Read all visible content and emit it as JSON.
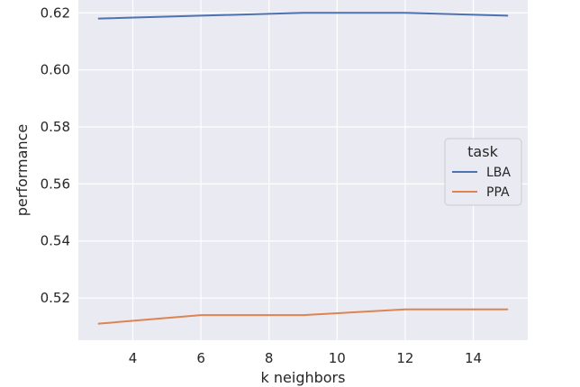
{
  "chart_data": {
    "type": "line",
    "xlabel": "k neighbors",
    "ylabel": "performance",
    "x": [
      3,
      6,
      9,
      12,
      15
    ],
    "xlim": [
      2.4,
      15.6
    ],
    "ylim": [
      0.5052,
      0.6245
    ],
    "xticks": [
      4,
      6,
      8,
      10,
      12,
      14
    ],
    "yticks": [
      0.52,
      0.54,
      0.56,
      0.58,
      0.6,
      0.62
    ],
    "xtick_labels": [
      "4",
      "6",
      "8",
      "10",
      "12",
      "14"
    ],
    "ytick_labels": [
      "0.52",
      "0.54",
      "0.56",
      "0.58",
      "0.60",
      "0.62"
    ],
    "grid": true,
    "series": [
      {
        "name": "LBA",
        "color": "#4c72b0",
        "values": [
          0.618,
          0.619,
          0.62,
          0.62,
          0.619
        ]
      },
      {
        "name": "PPA",
        "color": "#dd8452",
        "values": [
          0.511,
          0.514,
          0.514,
          0.516,
          0.516
        ]
      }
    ],
    "legend": {
      "title": "task",
      "placement": "center-right"
    }
  },
  "style": {
    "plot_background": "#eaeaf2",
    "grid_color": "#ffffff",
    "text_color": "#262626"
  }
}
